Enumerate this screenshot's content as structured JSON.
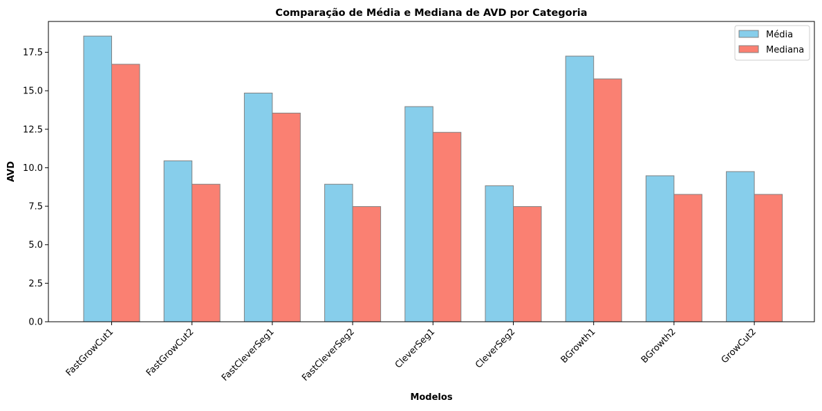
{
  "chart_data": {
    "type": "bar",
    "title": "Comparação de Média e Mediana de AVD por Categoria",
    "xlabel": "Modelos",
    "ylabel": "AVD",
    "categories": [
      "FastGrowCut1",
      "FastGrowCut2",
      "FastCleverSeg1",
      "FastCleverSeg2",
      "CleverSeg1",
      "CleverSeg2",
      "BGrowth1",
      "BGrowth2",
      "GrowCut2"
    ],
    "series": [
      {
        "name": "Média",
        "color": "#87ceeb",
        "values": [
          18.55,
          10.45,
          14.85,
          8.93,
          13.97,
          8.83,
          17.25,
          9.48,
          9.75
        ]
      },
      {
        "name": "Mediana",
        "color": "#fa8072",
        "values": [
          16.72,
          8.93,
          13.55,
          7.48,
          12.3,
          7.48,
          15.77,
          8.27,
          8.27
        ]
      }
    ],
    "ylim": [
      0,
      19.5
    ],
    "yticks": [
      "0.0",
      "2.5",
      "5.0",
      "7.5",
      "10.0",
      "12.5",
      "15.0",
      "17.5"
    ],
    "grid": false,
    "legend_position": "top-right",
    "bar_edge_color": "#808080"
  }
}
